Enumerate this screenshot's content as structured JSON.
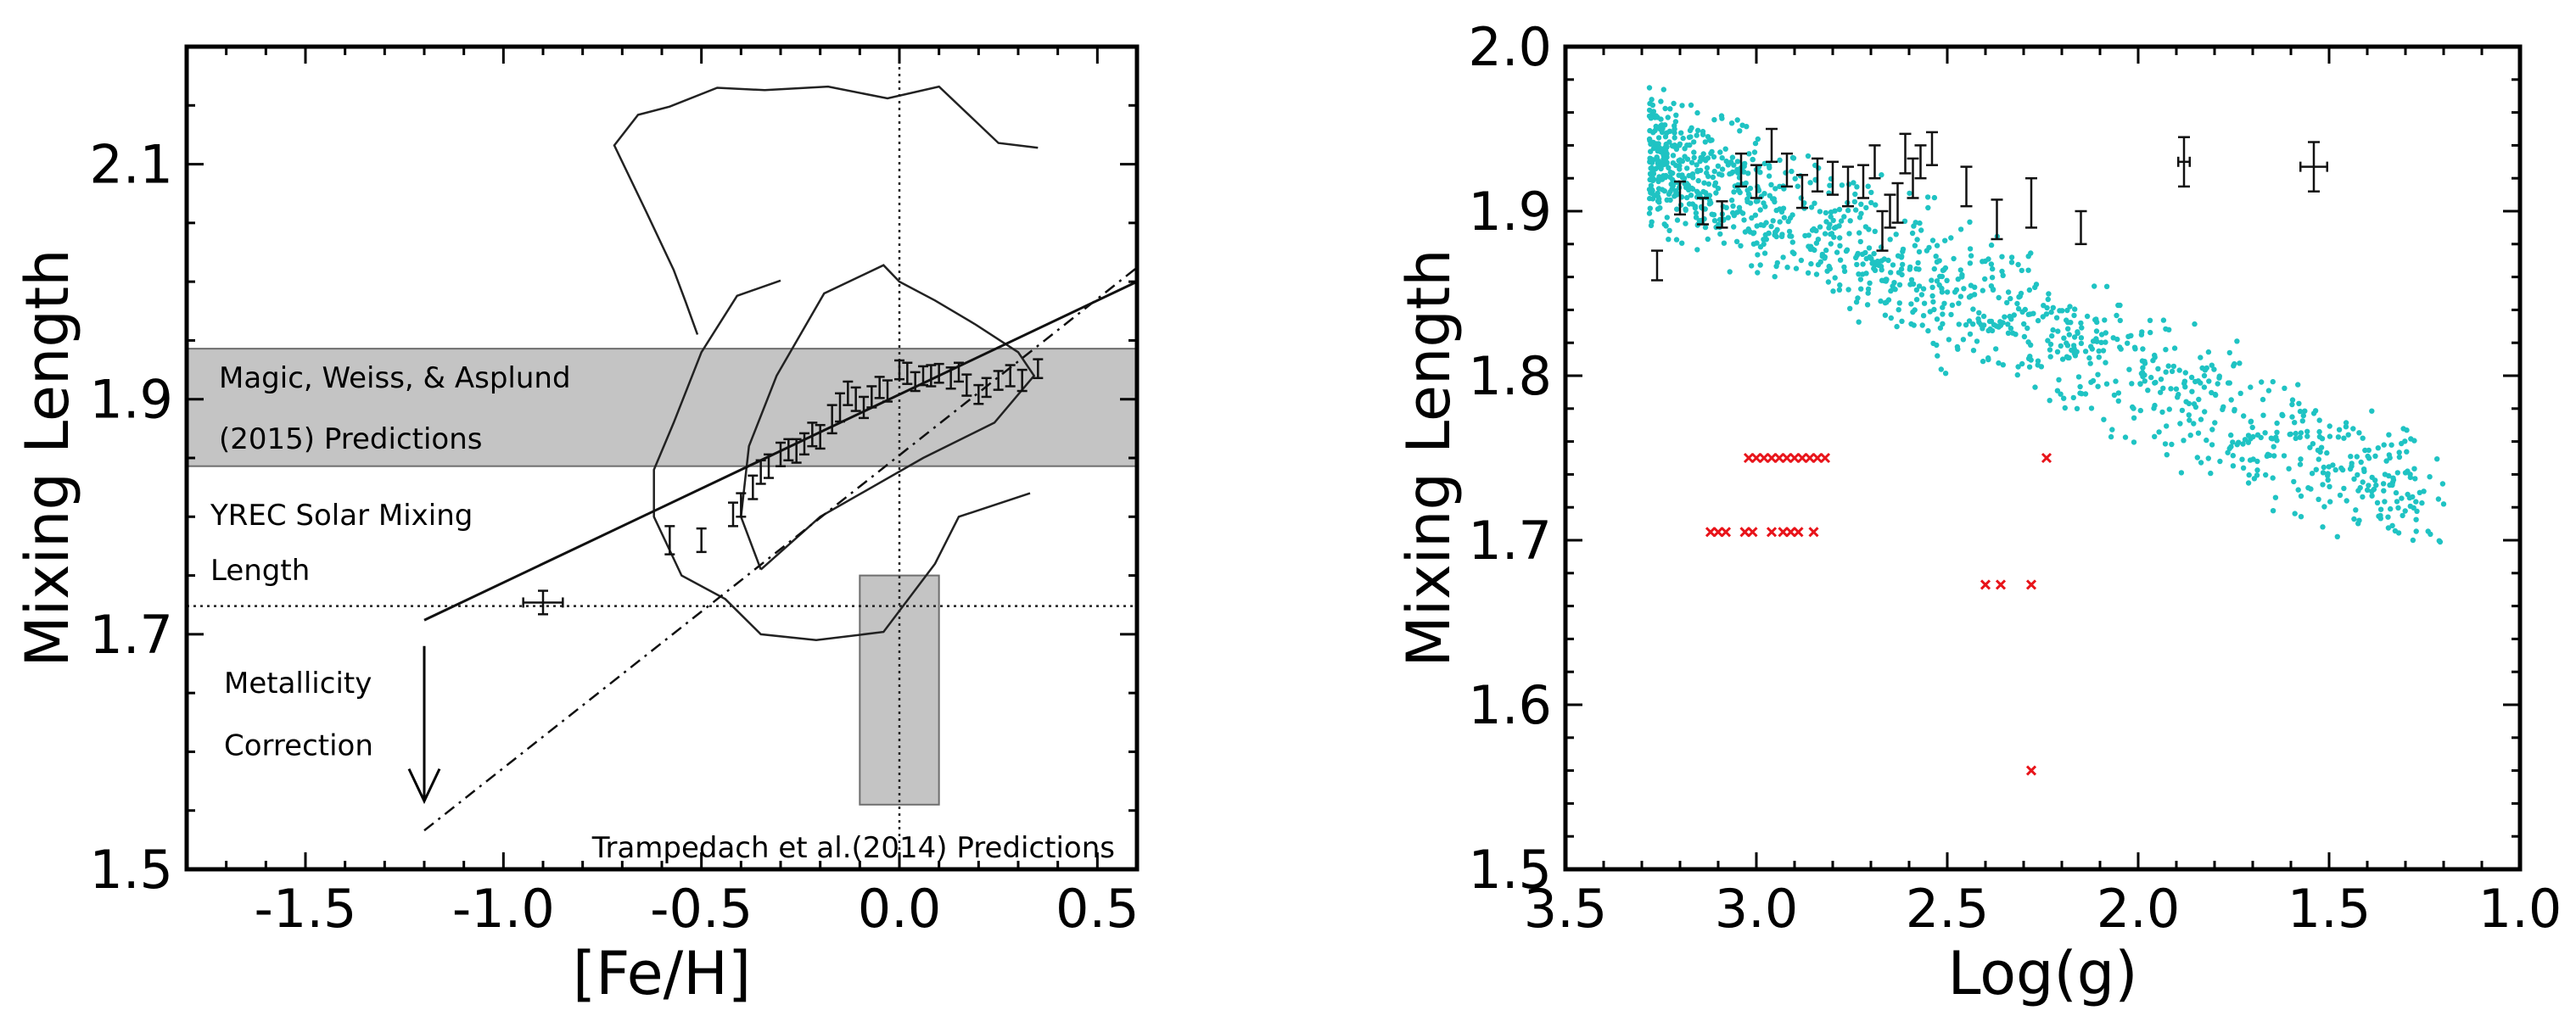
{
  "chart_data": [
    {
      "type": "scatter",
      "panel": "left",
      "xlabel": "[Fe/H]",
      "ylabel": "Mixing Length",
      "xlim": [
        -1.8,
        0.6
      ],
      "ylim": [
        1.5,
        2.2
      ],
      "xticks": [
        -1.5,
        -1.0,
        -0.5,
        0.0,
        0.5
      ],
      "xtick_labels": [
        "-1.5",
        "-1.0",
        "-0.5",
        "0.0",
        "0.5"
      ],
      "yticks": [
        1.5,
        1.7,
        1.9,
        2.1
      ],
      "ytick_labels": [
        "1.5",
        "1.7",
        "1.9",
        "2.1"
      ],
      "annotations": {
        "magic": "Magic, Weiss, & Asplund",
        "magic_2": "(2015) Predictions",
        "yrec": "YREC Solar Mixing",
        "yrec_2": "Length",
        "metal": "Metallicity",
        "metal_2": "Correction",
        "trampedach": "Trampedach et al.(2014) Predictions"
      },
      "magic_band": {
        "y0": 1.843,
        "y1": 1.943
      },
      "trampedach_box": {
        "x0": -0.1,
        "x1": 0.1,
        "y0": 1.555,
        "y1": 1.75
      },
      "yrec_solar_line": 1.724,
      "vertical_line_x": 0.0,
      "fit_line": {
        "x": [
          -1.2,
          0.6
        ],
        "y": [
          1.712,
          2.0
        ]
      },
      "dashdot_line": {
        "x": [
          -1.2,
          0.6
        ],
        "y": [
          1.533,
          2.012
        ]
      },
      "correction_arrow": {
        "x": -1.2,
        "y_from": 1.69,
        "y_to": 1.558
      },
      "contours": [
        {
          "x": [
            -0.3,
            -0.41,
            -0.5,
            -0.57,
            -0.62,
            -0.62,
            -0.55,
            -0.44,
            -0.35,
            -0.21,
            -0.04,
            0.09,
            0.15,
            0.33
          ],
          "y": [
            2.001,
            1.988,
            1.94,
            1.88,
            1.84,
            1.8,
            1.75,
            1.73,
            1.7,
            1.695,
            1.702,
            1.76,
            1.8,
            1.82
          ]
        },
        {
          "x": [
            -0.35,
            -0.4,
            -0.38,
            -0.31,
            -0.19,
            -0.04,
            0.0,
            0.09,
            0.19,
            0.3,
            0.34,
            0.24,
            0.06,
            -0.2,
            -0.35
          ],
          "y": [
            1.755,
            1.8,
            1.86,
            1.92,
            1.99,
            2.014,
            2.0,
            1.984,
            1.964,
            1.94,
            1.92,
            1.88,
            1.85,
            1.8,
            1.755
          ]
        },
        {
          "x": [
            -0.51,
            -0.54,
            -0.57,
            -0.64,
            -0.72,
            -0.66,
            -0.58,
            -0.46,
            -0.34,
            -0.18,
            -0.03,
            0.1,
            0.25,
            0.35
          ],
          "y": [
            1.955,
            1.983,
            2.01,
            2.06,
            2.116,
            2.142,
            2.149,
            2.165,
            2.163,
            2.166,
            2.156,
            2.166,
            2.118,
            2.114
          ]
        }
      ],
      "points": [
        {
          "x": -0.9,
          "y": 1.727,
          "yerr": 0.01,
          "xerr": 0.05
        },
        {
          "x": -0.58,
          "y": 1.78,
          "yerr": 0.012
        },
        {
          "x": -0.5,
          "y": 1.78,
          "yerr": 0.01
        },
        {
          "x": -0.42,
          "y": 1.802,
          "yerr": 0.01
        },
        {
          "x": -0.4,
          "y": 1.81,
          "yerr": 0.01
        },
        {
          "x": -0.37,
          "y": 1.825,
          "yerr": 0.01
        },
        {
          "x": -0.35,
          "y": 1.838,
          "yerr": 0.01
        },
        {
          "x": -0.33,
          "y": 1.843,
          "yerr": 0.01
        },
        {
          "x": -0.3,
          "y": 1.853,
          "yerr": 0.01
        },
        {
          "x": -0.28,
          "y": 1.857,
          "yerr": 0.009
        },
        {
          "x": -0.26,
          "y": 1.856,
          "yerr": 0.01
        },
        {
          "x": -0.24,
          "y": 1.862,
          "yerr": 0.009
        },
        {
          "x": -0.22,
          "y": 1.87,
          "yerr": 0.01
        },
        {
          "x": -0.2,
          "y": 1.868,
          "yerr": 0.01
        },
        {
          "x": -0.17,
          "y": 1.883,
          "yerr": 0.012
        },
        {
          "x": -0.15,
          "y": 1.893,
          "yerr": 0.012
        },
        {
          "x": -0.13,
          "y": 1.905,
          "yerr": 0.01
        },
        {
          "x": -0.11,
          "y": 1.9,
          "yerr": 0.01
        },
        {
          "x": -0.09,
          "y": 1.893,
          "yerr": 0.009
        },
        {
          "x": -0.07,
          "y": 1.902,
          "yerr": 0.009
        },
        {
          "x": -0.05,
          "y": 1.91,
          "yerr": 0.009
        },
        {
          "x": -0.03,
          "y": 1.907,
          "yerr": 0.009
        },
        {
          "x": 0.0,
          "y": 1.925,
          "yerr": 0.008
        },
        {
          "x": 0.02,
          "y": 1.922,
          "yerr": 0.009
        },
        {
          "x": 0.04,
          "y": 1.915,
          "yerr": 0.008
        },
        {
          "x": 0.06,
          "y": 1.92,
          "yerr": 0.008
        },
        {
          "x": 0.08,
          "y": 1.92,
          "yerr": 0.009
        },
        {
          "x": 0.1,
          "y": 1.922,
          "yerr": 0.008
        },
        {
          "x": 0.13,
          "y": 1.918,
          "yerr": 0.009
        },
        {
          "x": 0.15,
          "y": 1.923,
          "yerr": 0.008
        },
        {
          "x": 0.17,
          "y": 1.912,
          "yerr": 0.009
        },
        {
          "x": 0.2,
          "y": 1.904,
          "yerr": 0.008
        },
        {
          "x": 0.22,
          "y": 1.91,
          "yerr": 0.008
        },
        {
          "x": 0.25,
          "y": 1.916,
          "yerr": 0.008
        },
        {
          "x": 0.28,
          "y": 1.92,
          "yerr": 0.009
        },
        {
          "x": 0.31,
          "y": 1.916,
          "yerr": 0.009
        },
        {
          "x": 0.35,
          "y": 1.926,
          "yerr": 0.008
        }
      ]
    },
    {
      "type": "scatter",
      "panel": "right",
      "xlabel": "Log(g)",
      "ylabel": "Mixing Length",
      "xlim": [
        3.5,
        1.0
      ],
      "ylim": [
        1.5,
        2.0
      ],
      "xticks": [
        3.5,
        3.0,
        2.5,
        2.0,
        1.5,
        1.0
      ],
      "xtick_labels": [
        "3.5",
        "3.0",
        "2.5",
        "2.0",
        "1.5",
        "1.0"
      ],
      "yticks": [
        1.5,
        1.6,
        1.7,
        1.8,
        1.9,
        2.0
      ],
      "ytick_labels": [
        "1.5",
        "1.6",
        "1.7",
        "1.8",
        "1.9",
        "2.0"
      ],
      "model_grid_color": "#1fc3c3",
      "red_marker_color": "#e8141a",
      "model_grid": {
        "count": 1300,
        "logg_range": [
          3.28,
          1.2
        ],
        "trend_at_3.3": 1.935,
        "trend_slope": 0.103,
        "scatter": 0.02,
        "extremes": [
          {
            "x": 3.28,
            "y": 1.975
          },
          {
            "x": 2.27,
            "y": 1.793
          },
          {
            "x": 1.2,
            "y": 1.722
          },
          {
            "x": 1.3,
            "y": 1.741
          }
        ]
      },
      "red_markers": [
        {
          "x": 3.02,
          "y": 1.75
        },
        {
          "x": 3.0,
          "y": 1.75
        },
        {
          "x": 2.98,
          "y": 1.75
        },
        {
          "x": 2.96,
          "y": 1.75
        },
        {
          "x": 2.94,
          "y": 1.75
        },
        {
          "x": 2.92,
          "y": 1.75
        },
        {
          "x": 2.9,
          "y": 1.75
        },
        {
          "x": 2.88,
          "y": 1.75
        },
        {
          "x": 2.86,
          "y": 1.75
        },
        {
          "x": 2.84,
          "y": 1.75
        },
        {
          "x": 2.82,
          "y": 1.75
        },
        {
          "x": 2.24,
          "y": 1.75
        },
        {
          "x": 3.12,
          "y": 1.705
        },
        {
          "x": 3.1,
          "y": 1.705
        },
        {
          "x": 3.08,
          "y": 1.705
        },
        {
          "x": 3.03,
          "y": 1.705
        },
        {
          "x": 3.01,
          "y": 1.705
        },
        {
          "x": 2.96,
          "y": 1.705
        },
        {
          "x": 2.93,
          "y": 1.705
        },
        {
          "x": 2.91,
          "y": 1.705
        },
        {
          "x": 2.89,
          "y": 1.705
        },
        {
          "x": 2.85,
          "y": 1.705
        },
        {
          "x": 2.4,
          "y": 1.673
        },
        {
          "x": 2.36,
          "y": 1.673
        },
        {
          "x": 2.28,
          "y": 1.673
        },
        {
          "x": 2.28,
          "y": 1.56
        }
      ],
      "points": [
        {
          "x": 3.26,
          "y": 1.867,
          "yerr": 0.009
        },
        {
          "x": 3.2,
          "y": 1.908,
          "yerr": 0.01
        },
        {
          "x": 3.14,
          "y": 1.9,
          "yerr": 0.008
        },
        {
          "x": 3.09,
          "y": 1.898,
          "yerr": 0.008
        },
        {
          "x": 3.04,
          "y": 1.925,
          "yerr": 0.01
        },
        {
          "x": 3.0,
          "y": 1.918,
          "yerr": 0.01
        },
        {
          "x": 2.96,
          "y": 1.94,
          "yerr": 0.01
        },
        {
          "x": 2.92,
          "y": 1.925,
          "yerr": 0.01
        },
        {
          "x": 2.88,
          "y": 1.912,
          "yerr": 0.01
        },
        {
          "x": 2.84,
          "y": 1.922,
          "yerr": 0.01
        },
        {
          "x": 2.8,
          "y": 1.92,
          "yerr": 0.01
        },
        {
          "x": 2.76,
          "y": 1.915,
          "yerr": 0.012
        },
        {
          "x": 2.72,
          "y": 1.918,
          "yerr": 0.01
        },
        {
          "x": 2.69,
          "y": 1.93,
          "yerr": 0.01
        },
        {
          "x": 2.67,
          "y": 1.888,
          "yerr": 0.012
        },
        {
          "x": 2.65,
          "y": 1.9,
          "yerr": 0.01
        },
        {
          "x": 2.63,
          "y": 1.905,
          "yerr": 0.012
        },
        {
          "x": 2.61,
          "y": 1.935,
          "yerr": 0.012
        },
        {
          "x": 2.59,
          "y": 1.92,
          "yerr": 0.012
        },
        {
          "x": 2.57,
          "y": 1.93,
          "yerr": 0.01
        },
        {
          "x": 2.54,
          "y": 1.938,
          "yerr": 0.01
        },
        {
          "x": 2.45,
          "y": 1.915,
          "yerr": 0.012
        },
        {
          "x": 2.37,
          "y": 1.895,
          "yerr": 0.012
        },
        {
          "x": 2.28,
          "y": 1.905,
          "yerr": 0.015
        },
        {
          "x": 2.15,
          "y": 1.89,
          "yerr": 0.01
        },
        {
          "x": 1.88,
          "y": 1.93,
          "yerr": 0.015,
          "xerr": 0.015
        },
        {
          "x": 1.54,
          "y": 1.927,
          "yerr": 0.015,
          "xerr": 0.035
        }
      ]
    }
  ]
}
